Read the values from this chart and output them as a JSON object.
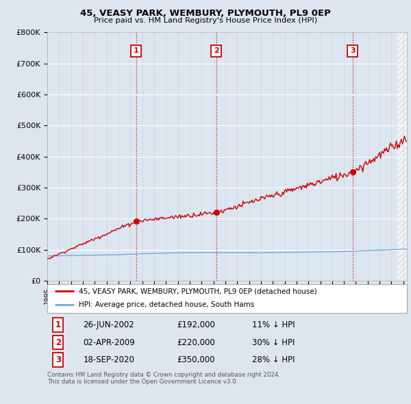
{
  "title": "45, VEASY PARK, WEMBURY, PLYMOUTH, PL9 0EP",
  "subtitle": "Price paid vs. HM Land Registry's House Price Index (HPI)",
  "background_color": "#dce6f1",
  "hpi_color": "#6baed6",
  "price_color": "#cc0000",
  "ylim": [
    0,
    800000
  ],
  "yticks": [
    0,
    100000,
    200000,
    300000,
    400000,
    500000,
    600000,
    700000,
    800000
  ],
  "ytick_labels": [
    "£0",
    "£100K",
    "£200K",
    "£300K",
    "£400K",
    "£500K",
    "£600K",
    "£700K",
    "£800K"
  ],
  "xstart": 1995.0,
  "xend": 2025.3,
  "sale_dates": [
    2002.49,
    2009.25,
    2020.72
  ],
  "sale_prices": [
    192000,
    220000,
    350000
  ],
  "sale_labels": [
    "1",
    "2",
    "3"
  ],
  "legend_price_label": "45, VEASY PARK, WEMBURY, PLYMOUTH, PL9 0EP (detached house)",
  "legend_hpi_label": "HPI: Average price, detached house, South Hams",
  "table_rows": [
    [
      "1",
      "26-JUN-2002",
      "£192,000",
      "11% ↓ HPI"
    ],
    [
      "2",
      "02-APR-2009",
      "£220,000",
      "30% ↓ HPI"
    ],
    [
      "3",
      "18-SEP-2020",
      "£350,000",
      "28% ↓ HPI"
    ]
  ],
  "footnote": "Contains HM Land Registry data © Crown copyright and database right 2024.\nThis data is licensed under the Open Government Licence v3.0."
}
